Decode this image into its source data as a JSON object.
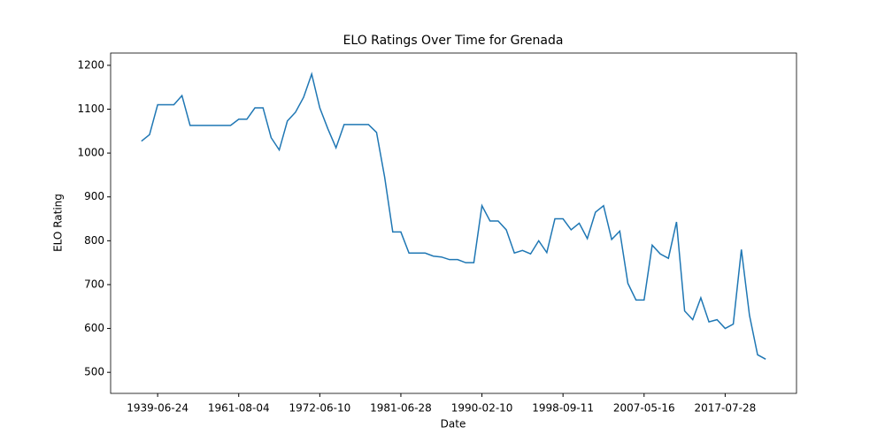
{
  "chart_data": {
    "type": "line",
    "title": "ELO Ratings Over Time for Grenada",
    "x_label": "Date",
    "y_label": "ELO Rating",
    "color": "#1f77b4",
    "categories": [
      null,
      null,
      "1939-06-24",
      null,
      null,
      null,
      null,
      null,
      null,
      null,
      null,
      null,
      "1961-08-04",
      null,
      null,
      null,
      null,
      null,
      null,
      null,
      null,
      null,
      "1972-06-10",
      null,
      null,
      null,
      null,
      null,
      null,
      null,
      null,
      null,
      "1981-06-28",
      null,
      null,
      null,
      null,
      null,
      null,
      null,
      null,
      null,
      "1990-02-10",
      null,
      null,
      null,
      null,
      null,
      null,
      null,
      null,
      null,
      "1998-09-11",
      null,
      null,
      null,
      null,
      null,
      null,
      null,
      null,
      null,
      "2007-05-16",
      null,
      null,
      null,
      null,
      null,
      null,
      null,
      null,
      null,
      "2017-07-28",
      null,
      null,
      null,
      null,
      null
    ],
    "values": [
      1027,
      1042,
      1110,
      1110,
      1110,
      1131,
      1063,
      1063,
      1063,
      1063,
      1063,
      1063,
      1077,
      1077,
      1103,
      1103,
      1035,
      1007,
      1073,
      1093,
      1127,
      1180,
      1103,
      1055,
      1012,
      1065,
      1065,
      1065,
      1065,
      1047,
      945,
      820,
      820,
      772,
      772,
      772,
      765,
      763,
      757,
      757,
      750,
      750,
      880,
      845,
      845,
      825,
      772,
      778,
      770,
      800,
      773,
      850,
      850,
      825,
      840,
      805,
      865,
      880,
      803,
      822,
      703,
      665,
      665,
      790,
      770,
      760,
      843,
      640,
      620,
      670,
      615,
      620,
      600,
      610,
      780,
      630,
      540,
      530
    ],
    "ylim": [
      452,
      1228
    ],
    "yticks": [
      500,
      600,
      700,
      800,
      900,
      1000,
      1100,
      1200
    ]
  }
}
